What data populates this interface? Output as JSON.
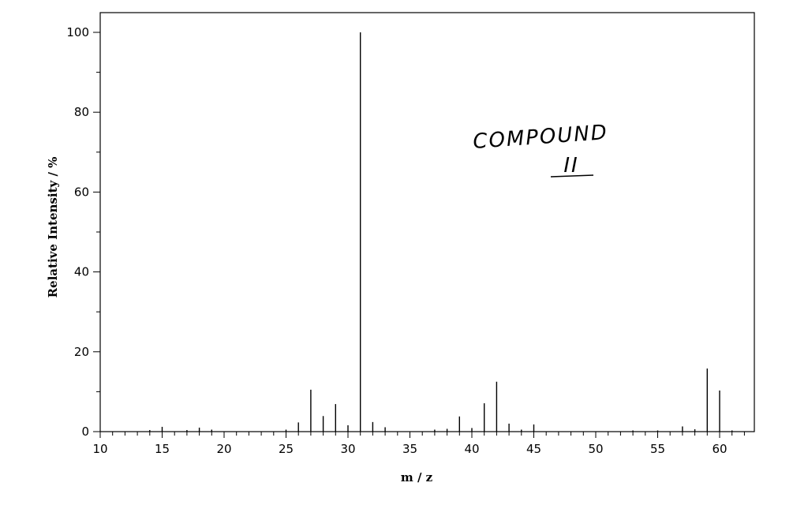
{
  "chart_data": {
    "type": "bar",
    "subtype": "mass-spectrum-stick",
    "title": "",
    "xlabel": "m / z",
    "ylabel": "Relative Intensity / %",
    "xlim": [
      10,
      63
    ],
    "ylim": [
      0,
      105
    ],
    "x_major_ticks": [
      10,
      15,
      20,
      25,
      30,
      35,
      40,
      45,
      50,
      55,
      60
    ],
    "x_minor_tick_step": 1,
    "y_major_ticks": [
      0,
      20,
      40,
      60,
      80,
      100
    ],
    "y_minor_tick_step": 10,
    "grid": false,
    "legend": "none",
    "annotations": [
      {
        "text": "COMPOUND",
        "style": "handwritten"
      },
      {
        "text": "II",
        "style": "handwritten-underlined"
      }
    ],
    "peaks": [
      {
        "mz": 14,
        "intensity": 0.4
      },
      {
        "mz": 15,
        "intensity": 1.2
      },
      {
        "mz": 17,
        "intensity": 0.4
      },
      {
        "mz": 18,
        "intensity": 1.0
      },
      {
        "mz": 19,
        "intensity": 0.5
      },
      {
        "mz": 25,
        "intensity": 0.5
      },
      {
        "mz": 26,
        "intensity": 2.3
      },
      {
        "mz": 27,
        "intensity": 10.5
      },
      {
        "mz": 28,
        "intensity": 3.9
      },
      {
        "mz": 29,
        "intensity": 6.9
      },
      {
        "mz": 30,
        "intensity": 1.6
      },
      {
        "mz": 31,
        "intensity": 100
      },
      {
        "mz": 32,
        "intensity": 2.4
      },
      {
        "mz": 33,
        "intensity": 1.1
      },
      {
        "mz": 37,
        "intensity": 0.5
      },
      {
        "mz": 38,
        "intensity": 0.7
      },
      {
        "mz": 39,
        "intensity": 3.8
      },
      {
        "mz": 40,
        "intensity": 0.9
      },
      {
        "mz": 41,
        "intensity": 7.1
      },
      {
        "mz": 42,
        "intensity": 12.5
      },
      {
        "mz": 43,
        "intensity": 2.0
      },
      {
        "mz": 44,
        "intensity": 0.5
      },
      {
        "mz": 45,
        "intensity": 1.8
      },
      {
        "mz": 53,
        "intensity": 0.3
      },
      {
        "mz": 55,
        "intensity": 0.3
      },
      {
        "mz": 57,
        "intensity": 1.3
      },
      {
        "mz": 58,
        "intensity": 0.6
      },
      {
        "mz": 59,
        "intensity": 15.8
      },
      {
        "mz": 60,
        "intensity": 10.3
      },
      {
        "mz": 61,
        "intensity": 0.3
      }
    ]
  }
}
